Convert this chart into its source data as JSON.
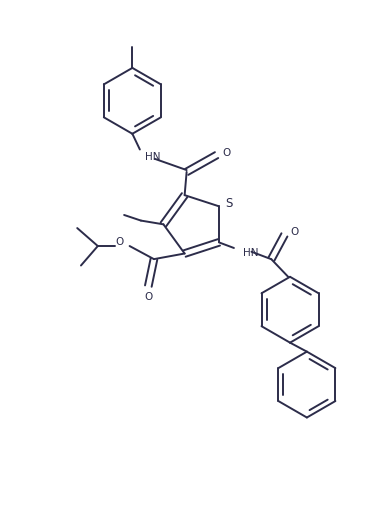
{
  "background_color": "#ffffff",
  "line_color": "#2c2c4a",
  "line_width": 1.4,
  "figure_width": 3.77,
  "figure_height": 5.31,
  "dpi": 100,
  "xlim": [
    0,
    10
  ],
  "ylim": [
    0,
    14
  ]
}
